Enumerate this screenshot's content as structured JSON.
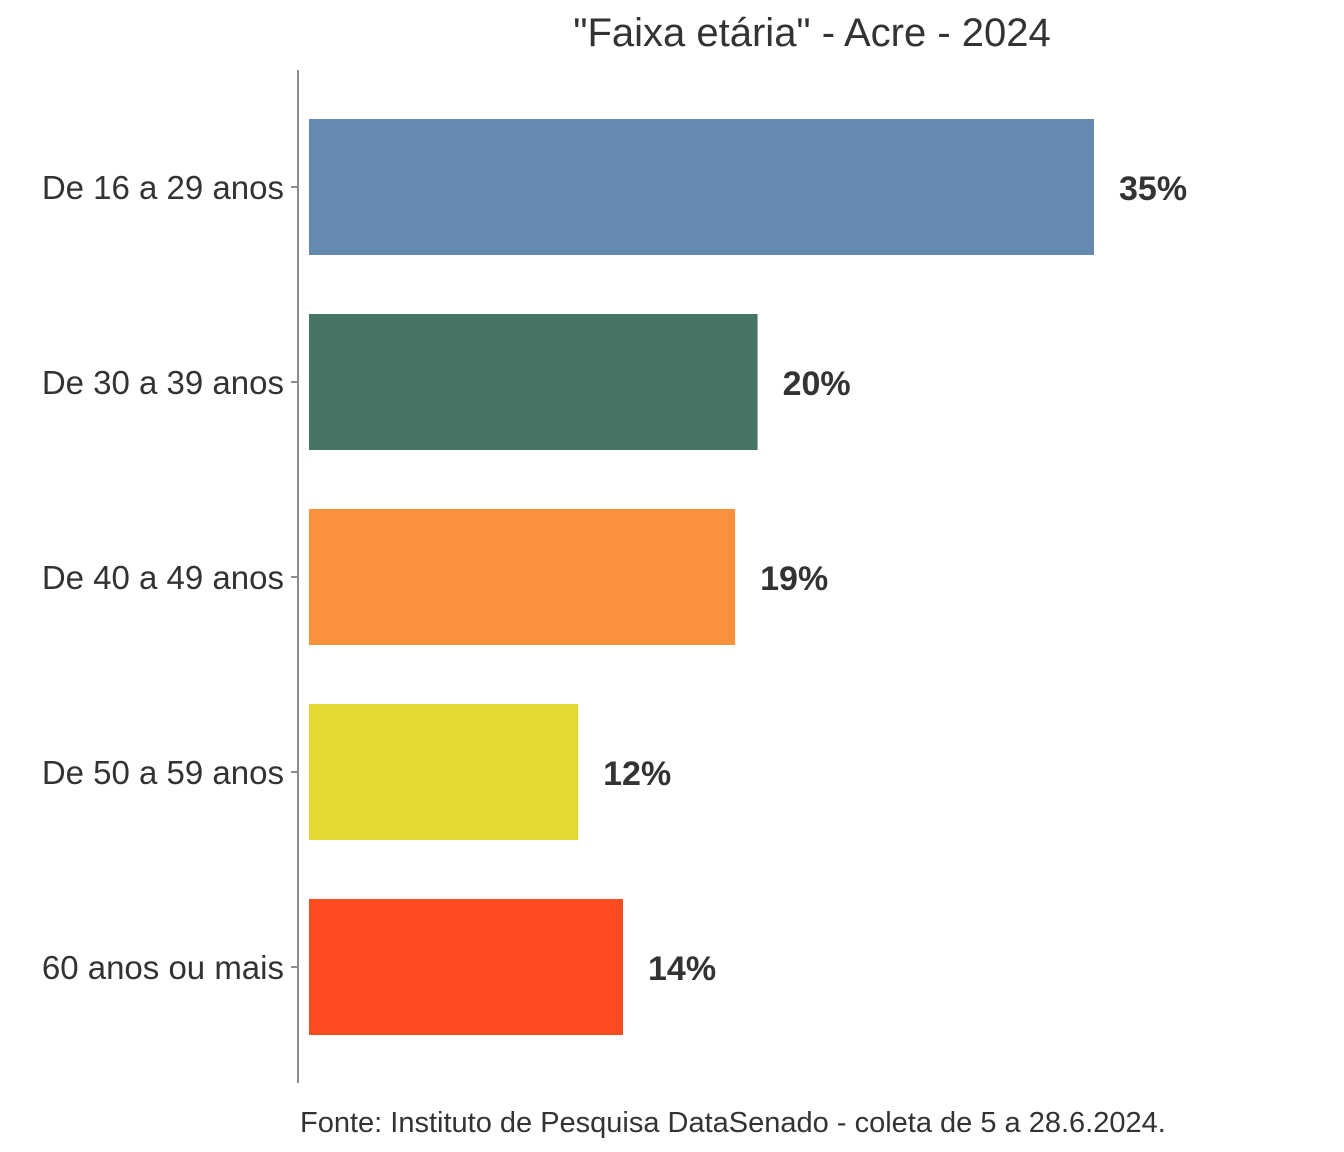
{
  "chart_data": {
    "type": "bar",
    "orientation": "horizontal",
    "title": "\"Faixa etária\" - Acre - 2024",
    "caption": "Fonte: Instituto de Pesquisa DataSenado - coleta de 5 a 28.6.2024.",
    "categories": [
      "De 16 a 29 anos",
      "De 30 a 39 anos",
      "De 40 a 49 anos",
      "De 50 a 59 anos",
      "60 anos ou mais"
    ],
    "values": [
      35,
      20,
      19,
      12,
      14
    ],
    "value_labels": [
      "35%",
      "20%",
      "19%",
      "12%",
      "14%"
    ],
    "colors": [
      "#6689B0",
      "#477563",
      "#FA923D",
      "#E5D835",
      "#FF4B22"
    ],
    "xlim": [
      0,
      35
    ],
    "xlabel": "",
    "ylabel": "",
    "grid": false,
    "legend": "none"
  }
}
